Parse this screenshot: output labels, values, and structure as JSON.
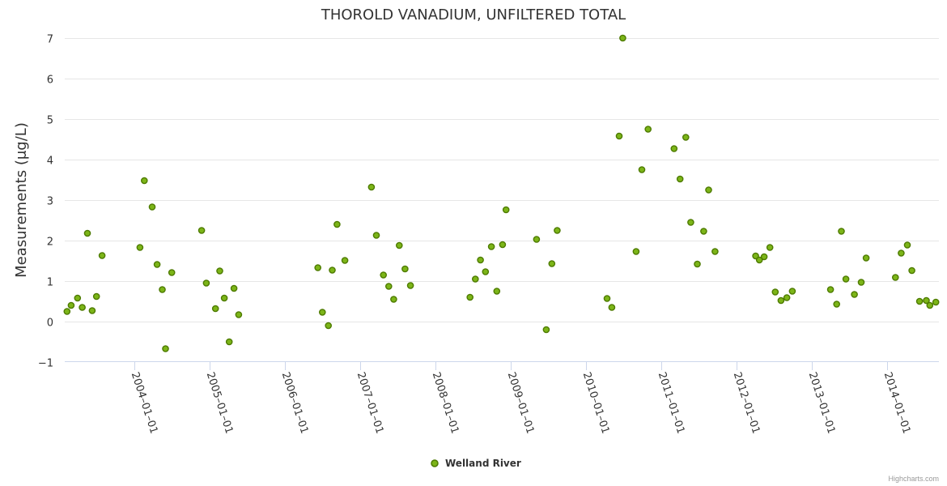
{
  "chart_data": {
    "type": "scatter",
    "title": "THOROLD VANADIUM, UNFILTERED TOTAL",
    "ylabel": "Measurements (μg/L)",
    "ylim": [
      -1,
      7
    ],
    "yticks": [
      -1,
      0,
      1,
      2,
      3,
      4,
      5,
      6,
      7
    ],
    "xlim": [
      "2003-01-28",
      "2014-09-08"
    ],
    "xticks": [
      "2004-01-01",
      "2005-01-01",
      "2006-01-01",
      "2007-01-01",
      "2008-01-01",
      "2009-01-01",
      "2010-01-01",
      "2011-01-01",
      "2012-01-01",
      "2013-01-01",
      "2014-01-01"
    ],
    "grid": "horizontal",
    "legend_position": "bottom-center",
    "series": [
      {
        "name": "Welland River",
        "color": "#7cb518",
        "edge_color": "#4d7a00",
        "points": [
          {
            "x": "2003-02-08",
            "y": 0.25
          },
          {
            "x": "2003-02-28",
            "y": 0.4
          },
          {
            "x": "2003-03-31",
            "y": 0.58
          },
          {
            "x": "2003-04-23",
            "y": 0.35
          },
          {
            "x": "2003-05-18",
            "y": 2.18
          },
          {
            "x": "2003-06-10",
            "y": 0.27
          },
          {
            "x": "2003-07-01",
            "y": 0.62
          },
          {
            "x": "2003-07-28",
            "y": 1.63
          },
          {
            "x": "2004-01-28",
            "y": 1.83
          },
          {
            "x": "2004-02-18",
            "y": 3.48
          },
          {
            "x": "2004-03-27",
            "y": 2.83
          },
          {
            "x": "2004-04-20",
            "y": 1.41
          },
          {
            "x": "2004-05-15",
            "y": 0.79
          },
          {
            "x": "2004-05-31",
            "y": -0.67
          },
          {
            "x": "2004-06-30",
            "y": 1.21
          },
          {
            "x": "2004-11-22",
            "y": 2.25
          },
          {
            "x": "2004-12-15",
            "y": 0.95
          },
          {
            "x": "2005-01-28",
            "y": 0.32
          },
          {
            "x": "2005-02-18",
            "y": 1.25
          },
          {
            "x": "2005-03-12",
            "y": 0.58
          },
          {
            "x": "2005-04-05",
            "y": -0.5
          },
          {
            "x": "2005-04-28",
            "y": 0.82
          },
          {
            "x": "2005-05-21",
            "y": 0.17
          },
          {
            "x": "2006-06-09",
            "y": 1.33
          },
          {
            "x": "2006-07-01",
            "y": 0.23
          },
          {
            "x": "2006-07-30",
            "y": -0.1
          },
          {
            "x": "2006-08-18",
            "y": 1.27
          },
          {
            "x": "2006-09-10",
            "y": 2.4
          },
          {
            "x": "2006-10-18",
            "y": 1.51
          },
          {
            "x": "2007-02-24",
            "y": 3.32
          },
          {
            "x": "2007-03-20",
            "y": 2.13
          },
          {
            "x": "2007-04-23",
            "y": 1.15
          },
          {
            "x": "2007-05-19",
            "y": 0.87
          },
          {
            "x": "2007-06-12",
            "y": 0.55
          },
          {
            "x": "2007-07-09",
            "y": 1.88
          },
          {
            "x": "2007-08-06",
            "y": 1.3
          },
          {
            "x": "2007-09-01",
            "y": 0.89
          },
          {
            "x": "2008-06-16",
            "y": 0.6
          },
          {
            "x": "2008-07-12",
            "y": 1.05
          },
          {
            "x": "2008-08-06",
            "y": 1.52
          },
          {
            "x": "2008-08-30",
            "y": 1.23
          },
          {
            "x": "2008-09-28",
            "y": 1.85
          },
          {
            "x": "2008-10-24",
            "y": 0.75
          },
          {
            "x": "2008-11-21",
            "y": 1.9
          },
          {
            "x": "2008-12-08",
            "y": 2.76
          },
          {
            "x": "2009-05-05",
            "y": 2.03
          },
          {
            "x": "2009-06-21",
            "y": -0.2
          },
          {
            "x": "2009-07-18",
            "y": 1.43
          },
          {
            "x": "2009-08-13",
            "y": 2.25
          },
          {
            "x": "2010-04-12",
            "y": 0.57
          },
          {
            "x": "2010-05-05",
            "y": 0.35
          },
          {
            "x": "2010-06-10",
            "y": 4.58
          },
          {
            "x": "2010-06-27",
            "y": 7.0
          },
          {
            "x": "2010-08-31",
            "y": 1.73
          },
          {
            "x": "2010-09-28",
            "y": 3.75
          },
          {
            "x": "2010-10-28",
            "y": 4.75
          },
          {
            "x": "2011-03-03",
            "y": 4.27
          },
          {
            "x": "2011-04-01",
            "y": 3.52
          },
          {
            "x": "2011-04-29",
            "y": 4.55
          },
          {
            "x": "2011-05-23",
            "y": 2.45
          },
          {
            "x": "2011-06-24",
            "y": 1.42
          },
          {
            "x": "2011-07-25",
            "y": 2.23
          },
          {
            "x": "2011-08-18",
            "y": 3.25
          },
          {
            "x": "2011-09-18",
            "y": 1.73
          },
          {
            "x": "2012-04-02",
            "y": 1.62
          },
          {
            "x": "2012-04-20",
            "y": 1.52
          },
          {
            "x": "2012-05-13",
            "y": 1.6
          },
          {
            "x": "2012-06-10",
            "y": 1.83
          },
          {
            "x": "2012-07-06",
            "y": 0.73
          },
          {
            "x": "2012-08-03",
            "y": 0.52
          },
          {
            "x": "2012-08-31",
            "y": 0.59
          },
          {
            "x": "2012-09-27",
            "y": 0.75
          },
          {
            "x": "2013-03-31",
            "y": 0.79
          },
          {
            "x": "2013-04-30",
            "y": 0.43
          },
          {
            "x": "2013-05-23",
            "y": 2.23
          },
          {
            "x": "2013-06-14",
            "y": 1.05
          },
          {
            "x": "2013-07-25",
            "y": 0.67
          },
          {
            "x": "2013-08-27",
            "y": 0.97
          },
          {
            "x": "2013-09-20",
            "y": 1.57
          },
          {
            "x": "2014-02-09",
            "y": 1.09
          },
          {
            "x": "2014-03-09",
            "y": 1.69
          },
          {
            "x": "2014-04-08",
            "y": 1.89
          },
          {
            "x": "2014-04-30",
            "y": 1.26
          },
          {
            "x": "2014-06-06",
            "y": 0.5
          },
          {
            "x": "2014-07-09",
            "y": 0.52
          },
          {
            "x": "2014-07-26",
            "y": 0.4
          },
          {
            "x": "2014-08-24",
            "y": 0.48
          }
        ]
      }
    ]
  },
  "credits": "Highcharts.com"
}
